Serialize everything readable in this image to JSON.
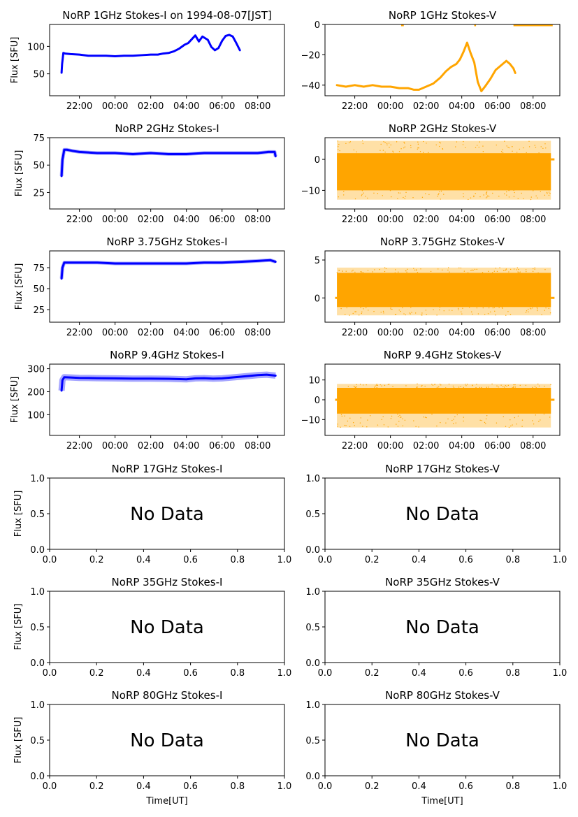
{
  "figure": {
    "xlabel": "Time[UT]",
    "ylabel": "Flux [SFU]",
    "no_data_label": "No Data"
  },
  "chart_data": [
    {
      "id": "1ghz-i",
      "type": "line",
      "title": "NoRP 1GHz Stokes-I on 1994-08-07[JST]",
      "ylabel": "Flux [SFU]",
      "color": "#0000ff",
      "xlim": [
        20.33,
        33.5
      ],
      "ylim": [
        10,
        140
      ],
      "xticks": [
        22,
        24,
        26,
        28,
        30,
        32
      ],
      "xticklabels": [
        "22:00",
        "00:00",
        "02:00",
        "04:00",
        "06:00",
        "08:00"
      ],
      "yticks": [
        50,
        100
      ],
      "yticklabels": [
        "50",
        "100"
      ],
      "series": [
        {
          "x": [
            21.0,
            21.03,
            21.1,
            21.2,
            21.5,
            22.0,
            22.5,
            23.0,
            23.5,
            24.0,
            24.5,
            25.0,
            25.5,
            26.0,
            26.4,
            26.7,
            27.0,
            27.3,
            27.6,
            27.9,
            28.1,
            28.3,
            28.5,
            28.7,
            28.9,
            29.2,
            29.4,
            29.6,
            29.8,
            30.0,
            30.2,
            30.4,
            30.6,
            30.8,
            31.0
          ],
          "y": [
            52,
            68,
            88,
            87,
            86,
            85,
            83,
            83,
            83,
            82,
            83,
            83,
            84,
            85,
            85,
            87,
            88,
            91,
            96,
            103,
            106,
            113,
            120,
            109,
            118,
            112,
            99,
            93,
            97,
            110,
            119,
            121,
            118,
            106,
            93
          ]
        }
      ]
    },
    {
      "id": "1ghz-v",
      "type": "line",
      "title": "NoRP 1GHz Stokes-V",
      "ylabel": "",
      "color": "#ffa500",
      "xlim": [
        20.33,
        33.5
      ],
      "ylim": [
        -47,
        0
      ],
      "xticks": [
        22,
        24,
        26,
        28,
        30,
        32
      ],
      "xticklabels": [
        "22:00",
        "00:00",
        "02:00",
        "04:00",
        "06:00",
        "08:00"
      ],
      "yticks": [
        -40,
        -20,
        0
      ],
      "yticklabels": [
        "−40",
        "−20",
        "0"
      ],
      "series": [
        {
          "x": [
            21.0,
            21.5,
            22.0,
            22.5,
            23.0,
            23.5,
            24.0,
            24.5,
            25.0,
            25.3,
            25.6,
            26.0,
            26.4,
            26.8,
            27.1,
            27.4,
            27.7,
            27.9,
            28.1,
            28.3,
            28.5,
            28.7,
            28.9,
            29.1,
            29.3,
            29.6,
            29.9,
            30.2,
            30.5,
            30.7,
            30.9,
            31.0
          ],
          "y": [
            -40,
            -41,
            -40,
            -41,
            -40,
            -41,
            -41,
            -42,
            -42,
            -43,
            -43,
            -41,
            -39,
            -35,
            -31,
            -28,
            -26,
            -23,
            -18,
            -12,
            -19,
            -25,
            -38,
            -44,
            -41,
            -36,
            -30,
            -27,
            -24,
            -26,
            -29,
            -32
          ]
        }
      ],
      "extra_segments": [
        {
          "x": [
            24.6,
            24.75
          ],
          "y": [
            0,
            0
          ]
        },
        {
          "x": [
            28.7,
            28.8
          ],
          "y": [
            0,
            0
          ]
        },
        {
          "x": [
            30.9,
            33.1
          ],
          "y": [
            0,
            0
          ]
        }
      ]
    },
    {
      "id": "2ghz-i",
      "type": "line",
      "title": "NoRP 2GHz Stokes-I",
      "ylabel": "Flux [SFU]",
      "color": "#0000ff",
      "xlim": [
        20.33,
        33.5
      ],
      "ylim": [
        10,
        75
      ],
      "xticks": [
        22,
        24,
        26,
        28,
        30,
        32
      ],
      "xticklabels": [
        "22:00",
        "00:00",
        "02:00",
        "04:00",
        "06:00",
        "08:00"
      ],
      "yticks": [
        25,
        50,
        75
      ],
      "yticklabels": [
        "25",
        "50",
        "75"
      ],
      "series": [
        {
          "x": [
            21.0,
            21.05,
            21.15,
            21.3,
            21.6,
            22.0,
            23.0,
            24.0,
            25.0,
            26.0,
            27.0,
            28.0,
            29.0,
            30.0,
            31.0,
            32.0,
            32.6,
            32.95,
            33.0
          ],
          "y": [
            40,
            55,
            64,
            64,
            63,
            62,
            61,
            61,
            60,
            61,
            60,
            60,
            61,
            61,
            61,
            61,
            62,
            62,
            58
          ]
        }
      ],
      "band": 3
    },
    {
      "id": "2ghz-v",
      "type": "scatter",
      "title": "NoRP 2GHz Stokes-V",
      "ylabel": "",
      "color": "#ffa500",
      "xlim": [
        20.33,
        33.5
      ],
      "ylim": [
        -16,
        7
      ],
      "xticks": [
        22,
        24,
        26,
        28,
        30,
        32
      ],
      "xticklabels": [
        "22:00",
        "00:00",
        "02:00",
        "04:00",
        "06:00",
        "08:00"
      ],
      "yticks": [
        -10,
        0
      ],
      "yticklabels": [
        "−10",
        "0"
      ],
      "band_region": {
        "x": [
          21.0,
          33.0
        ],
        "y": [
          -13,
          6
        ]
      },
      "band_core": {
        "x": [
          21.0,
          33.0
        ],
        "y": [
          -10,
          2
        ]
      },
      "tail_segment": {
        "x": [
          33.0,
          33.2
        ],
        "y": [
          0,
          0
        ]
      }
    },
    {
      "id": "375ghz-i",
      "type": "line",
      "title": "NoRP 3.75GHz Stokes-I",
      "ylabel": "Flux [SFU]",
      "color": "#0000ff",
      "xlim": [
        20.33,
        33.5
      ],
      "ylim": [
        10,
        95
      ],
      "xticks": [
        22,
        24,
        26,
        28,
        30,
        32
      ],
      "xticklabels": [
        "22:00",
        "00:00",
        "02:00",
        "04:00",
        "06:00",
        "08:00"
      ],
      "yticks": [
        25,
        50,
        75
      ],
      "yticklabels": [
        "25",
        "50",
        "75"
      ],
      "series": [
        {
          "x": [
            21.0,
            21.05,
            21.15,
            21.5,
            22.0,
            23.0,
            24.0,
            25.0,
            26.0,
            27.0,
            28.0,
            29.0,
            30.0,
            31.0,
            32.0,
            32.7,
            33.0
          ],
          "y": [
            62,
            75,
            81,
            81,
            81,
            81,
            80,
            80,
            80,
            80,
            80,
            81,
            81,
            82,
            83,
            84,
            82
          ]
        }
      ],
      "band": 3
    },
    {
      "id": "375ghz-v",
      "type": "scatter",
      "title": "NoRP 3.75GHz Stokes-V",
      "ylabel": "",
      "color": "#ffa500",
      "xlim": [
        20.33,
        33.5
      ],
      "ylim": [
        -3.2,
        6.2
      ],
      "xticks": [
        22,
        24,
        26,
        28,
        30,
        32
      ],
      "xticklabels": [
        "22:00",
        "00:00",
        "02:00",
        "04:00",
        "06:00",
        "08:00"
      ],
      "yticks": [
        0,
        5
      ],
      "yticklabels": [
        "0",
        "5"
      ],
      "band_region": {
        "x": [
          21.0,
          33.0
        ],
        "y": [
          -2.3,
          4.0
        ]
      },
      "band_core": {
        "x": [
          21.0,
          33.0
        ],
        "y": [
          -1.2,
          3.3
        ]
      },
      "tail_segment": {
        "x": [
          33.0,
          33.2
        ],
        "y": [
          0,
          0
        ]
      },
      "lead_segment": {
        "x": [
          20.9,
          21.0
        ],
        "y": [
          0,
          0
        ]
      }
    },
    {
      "id": "94ghz-i",
      "type": "line",
      "title": "NoRP 9.4GHz Stokes-I",
      "ylabel": "Flux [SFU]",
      "color": "#0000ff",
      "xlim": [
        20.33,
        33.5
      ],
      "ylim": [
        10,
        320
      ],
      "xticks": [
        22,
        24,
        26,
        28,
        30,
        32
      ],
      "xticklabels": [
        "22:00",
        "00:00",
        "02:00",
        "04:00",
        "06:00",
        "08:00"
      ],
      "yticks": [
        100,
        200,
        300
      ],
      "yticklabels": [
        "100",
        "200",
        "300"
      ],
      "series": [
        {
          "x": [
            21.0,
            21.05,
            21.15,
            21.5,
            22.0,
            23.0,
            24.0,
            25.0,
            26.0,
            27.0,
            27.5,
            28.0,
            28.5,
            29.0,
            29.5,
            30.0,
            31.0,
            32.0,
            32.5,
            33.0
          ],
          "y": [
            205,
            250,
            263,
            262,
            260,
            259,
            258,
            257,
            257,
            256,
            255,
            254,
            258,
            259,
            257,
            258,
            265,
            272,
            274,
            270
          ]
        }
      ],
      "band": 7
    },
    {
      "id": "94ghz-v",
      "type": "scatter",
      "title": "NoRP 9.4GHz Stokes-V",
      "ylabel": "",
      "color": "#ffa500",
      "xlim": [
        20.33,
        33.5
      ],
      "ylim": [
        -18,
        18
      ],
      "xticks": [
        22,
        24,
        26,
        28,
        30,
        32
      ],
      "xticklabels": [
        "22:00",
        "00:00",
        "02:00",
        "04:00",
        "06:00",
        "08:00"
      ],
      "yticks": [
        -10,
        0,
        10
      ],
      "yticklabels": [
        "−10",
        "0",
        "10"
      ],
      "band_region": {
        "x": [
          21.0,
          33.0
        ],
        "y": [
          -14,
          8
        ]
      },
      "band_core": {
        "x": [
          21.0,
          33.0
        ],
        "y": [
          -7,
          6
        ]
      },
      "tail_segment": {
        "x": [
          33.0,
          33.2
        ],
        "y": [
          0,
          0
        ]
      },
      "lead_segment": {
        "x": [
          20.9,
          21.0
        ],
        "y": [
          0,
          0
        ]
      }
    },
    {
      "id": "17ghz-i",
      "type": "line",
      "title": "NoRP 17GHz Stokes-I",
      "ylabel": "Flux [SFU]",
      "no_data": true,
      "xlim": [
        0,
        1
      ],
      "ylim": [
        0,
        1
      ],
      "xticks": [
        0,
        0.2,
        0.4,
        0.6,
        0.8,
        1.0
      ],
      "xticklabels": [
        "0.0",
        "0.2",
        "0.4",
        "0.6",
        "0.8",
        "1.0"
      ],
      "yticks": [
        0,
        0.5,
        1.0
      ],
      "yticklabels": [
        "0.0",
        "0.5",
        "1.0"
      ]
    },
    {
      "id": "17ghz-v",
      "type": "line",
      "title": "NoRP 17GHz Stokes-V",
      "ylabel": "",
      "no_data": true,
      "xlim": [
        0,
        1
      ],
      "ylim": [
        0,
        1
      ],
      "xticks": [
        0,
        0.2,
        0.4,
        0.6,
        0.8,
        1.0
      ],
      "xticklabels": [
        "0.0",
        "0.2",
        "0.4",
        "0.6",
        "0.8",
        "1.0"
      ],
      "yticks": [
        0,
        0.5,
        1.0
      ],
      "yticklabels": [
        "0.0",
        "0.5",
        "1.0"
      ]
    },
    {
      "id": "35ghz-i",
      "type": "line",
      "title": "NoRP 35GHz Stokes-I",
      "ylabel": "Flux [SFU]",
      "no_data": true,
      "xlim": [
        0,
        1
      ],
      "ylim": [
        0,
        1
      ],
      "xticks": [
        0,
        0.2,
        0.4,
        0.6,
        0.8,
        1.0
      ],
      "xticklabels": [
        "0.0",
        "0.2",
        "0.4",
        "0.6",
        "0.8",
        "1.0"
      ],
      "yticks": [
        0,
        0.5,
        1.0
      ],
      "yticklabels": [
        "0.0",
        "0.5",
        "1.0"
      ]
    },
    {
      "id": "35ghz-v",
      "type": "line",
      "title": "NoRP 35GHz Stokes-V",
      "ylabel": "",
      "no_data": true,
      "xlim": [
        0,
        1
      ],
      "ylim": [
        0,
        1
      ],
      "xticks": [
        0,
        0.2,
        0.4,
        0.6,
        0.8,
        1.0
      ],
      "xticklabels": [
        "0.0",
        "0.2",
        "0.4",
        "0.6",
        "0.8",
        "1.0"
      ],
      "yticks": [
        0,
        0.5,
        1.0
      ],
      "yticklabels": [
        "0.0",
        "0.5",
        "1.0"
      ]
    },
    {
      "id": "80ghz-i",
      "type": "line",
      "title": "NoRP 80GHz Stokes-I",
      "ylabel": "Flux [SFU]",
      "xlabel": "Time[UT]",
      "no_data": true,
      "xlim": [
        0,
        1
      ],
      "ylim": [
        0,
        1
      ],
      "xticks": [
        0,
        0.2,
        0.4,
        0.6,
        0.8,
        1.0
      ],
      "xticklabels": [
        "0.0",
        "0.2",
        "0.4",
        "0.6",
        "0.8",
        "1.0"
      ],
      "yticks": [
        0,
        0.5,
        1.0
      ],
      "yticklabels": [
        "0.0",
        "0.5",
        "1.0"
      ]
    },
    {
      "id": "80ghz-v",
      "type": "line",
      "title": "NoRP 80GHz Stokes-V",
      "ylabel": "",
      "xlabel": "Time[UT]",
      "no_data": true,
      "xlim": [
        0,
        1
      ],
      "ylim": [
        0,
        1
      ],
      "xticks": [
        0,
        0.2,
        0.4,
        0.6,
        0.8,
        1.0
      ],
      "xticklabels": [
        "0.0",
        "0.2",
        "0.4",
        "0.6",
        "0.8",
        "1.0"
      ],
      "yticks": [
        0,
        0.5,
        1.0
      ],
      "yticklabels": [
        "0.0",
        "0.5",
        "1.0"
      ]
    }
  ]
}
